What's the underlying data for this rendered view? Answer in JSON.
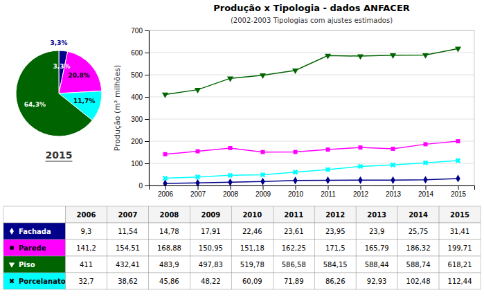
{
  "chart_data": [
    {
      "type": "pie",
      "title": "2015",
      "values": [
        3.3,
        20.8,
        11.7,
        64.3
      ],
      "value_labels": [
        "3,3%",
        "20,8%",
        "11,7%",
        "64,3%"
      ],
      "colors": [
        "#00008B",
        "#FF00FF",
        "#00FFFF",
        "#006400"
      ],
      "data_labels": true
    },
    {
      "type": "line",
      "title": "Produção x Tipologia - dados ANFACER",
      "subtitle": "(2002-2003 Tipologias com ajustes estimados)",
      "ylabel": "Produção (m² milhões)",
      "x": [
        2006,
        2007,
        2008,
        2009,
        2010,
        2011,
        2012,
        2013,
        2014,
        2015
      ],
      "xlim": [
        2005.5,
        2015.5
      ],
      "xticks": [
        2006,
        2007,
        2008,
        2009,
        2010,
        2011,
        2012,
        2013,
        2014,
        2015
      ],
      "ylim": [
        0,
        700
      ],
      "yticks": [
        0,
        100,
        200,
        300,
        400,
        500,
        600,
        700
      ],
      "grid": true,
      "series": [
        {
          "name": "Piso",
          "color": "#006400",
          "marker": "triangle-down",
          "values": [
            411,
            432.41,
            483.9,
            497.83,
            519.78,
            586.58,
            584.15,
            588.44,
            588.74,
            618.21
          ]
        },
        {
          "name": "Parede",
          "color": "#FF00FF",
          "marker": "square",
          "values": [
            141.2,
            154.51,
            168.88,
            150.95,
            151.18,
            162.25,
            171.5,
            165.79,
            186.32,
            199.71
          ]
        },
        {
          "name": "Porcelanato",
          "color": "#00FFFF",
          "marker": "x",
          "values": [
            32.7,
            38.62,
            45.86,
            48.22,
            60.09,
            71.89,
            86.26,
            92.93,
            102.48,
            112.44
          ]
        },
        {
          "name": "Fachada",
          "color": "#00008B",
          "marker": "diamond",
          "values": [
            9.3,
            11.54,
            14.78,
            17.91,
            22.46,
            23.61,
            23.95,
            23.9,
            25.75,
            31.41
          ]
        }
      ]
    },
    {
      "type": "table",
      "categories": [
        2006,
        2007,
        2008,
        2009,
        2010,
        2011,
        2012,
        2013,
        2014,
        2015
      ],
      "series": [
        {
          "name": "Fachada",
          "color": "#00008B",
          "marker": "diamond",
          "values": [
            9.3,
            11.54,
            14.78,
            17.91,
            22.46,
            23.61,
            23.95,
            23.9,
            25.75,
            31.41
          ],
          "value_labels": [
            "9,3",
            "11,54",
            "14,78",
            "17,91",
            "22,46",
            "23,61",
            "23,95",
            "23,9",
            "25,75",
            "31,41"
          ]
        },
        {
          "name": "Parede",
          "color": "#FF00FF",
          "marker": "square",
          "values": [
            141.2,
            154.51,
            168.88,
            150.95,
            151.18,
            162.25,
            171.5,
            165.79,
            186.32,
            199.71
          ],
          "value_labels": [
            "141,2",
            "154,51",
            "168,88",
            "150,95",
            "151,18",
            "162,25",
            "171,5",
            "165,79",
            "186,32",
            "199,71"
          ]
        },
        {
          "name": "Piso",
          "color": "#006400",
          "marker": "triangle-down",
          "values": [
            411,
            432.41,
            483.9,
            497.83,
            519.78,
            586.58,
            584.15,
            588.44,
            588.74,
            618.21
          ],
          "value_labels": [
            "411",
            "432,41",
            "483,9",
            "497,83",
            "519,78",
            "586,58",
            "584,15",
            "588,44",
            "588,74",
            "618,21"
          ]
        },
        {
          "name": "Porcelanato",
          "color": "#00FFFF",
          "marker": "x",
          "values": [
            32.7,
            38.62,
            45.86,
            48.22,
            60.09,
            71.89,
            86.26,
            92.93,
            102.48,
            112.44
          ],
          "value_labels": [
            "32,7",
            "38,62",
            "45,86",
            "48,22",
            "60,09",
            "71,89",
            "86,26",
            "92,93",
            "102,48",
            "112,44"
          ]
        }
      ]
    }
  ]
}
